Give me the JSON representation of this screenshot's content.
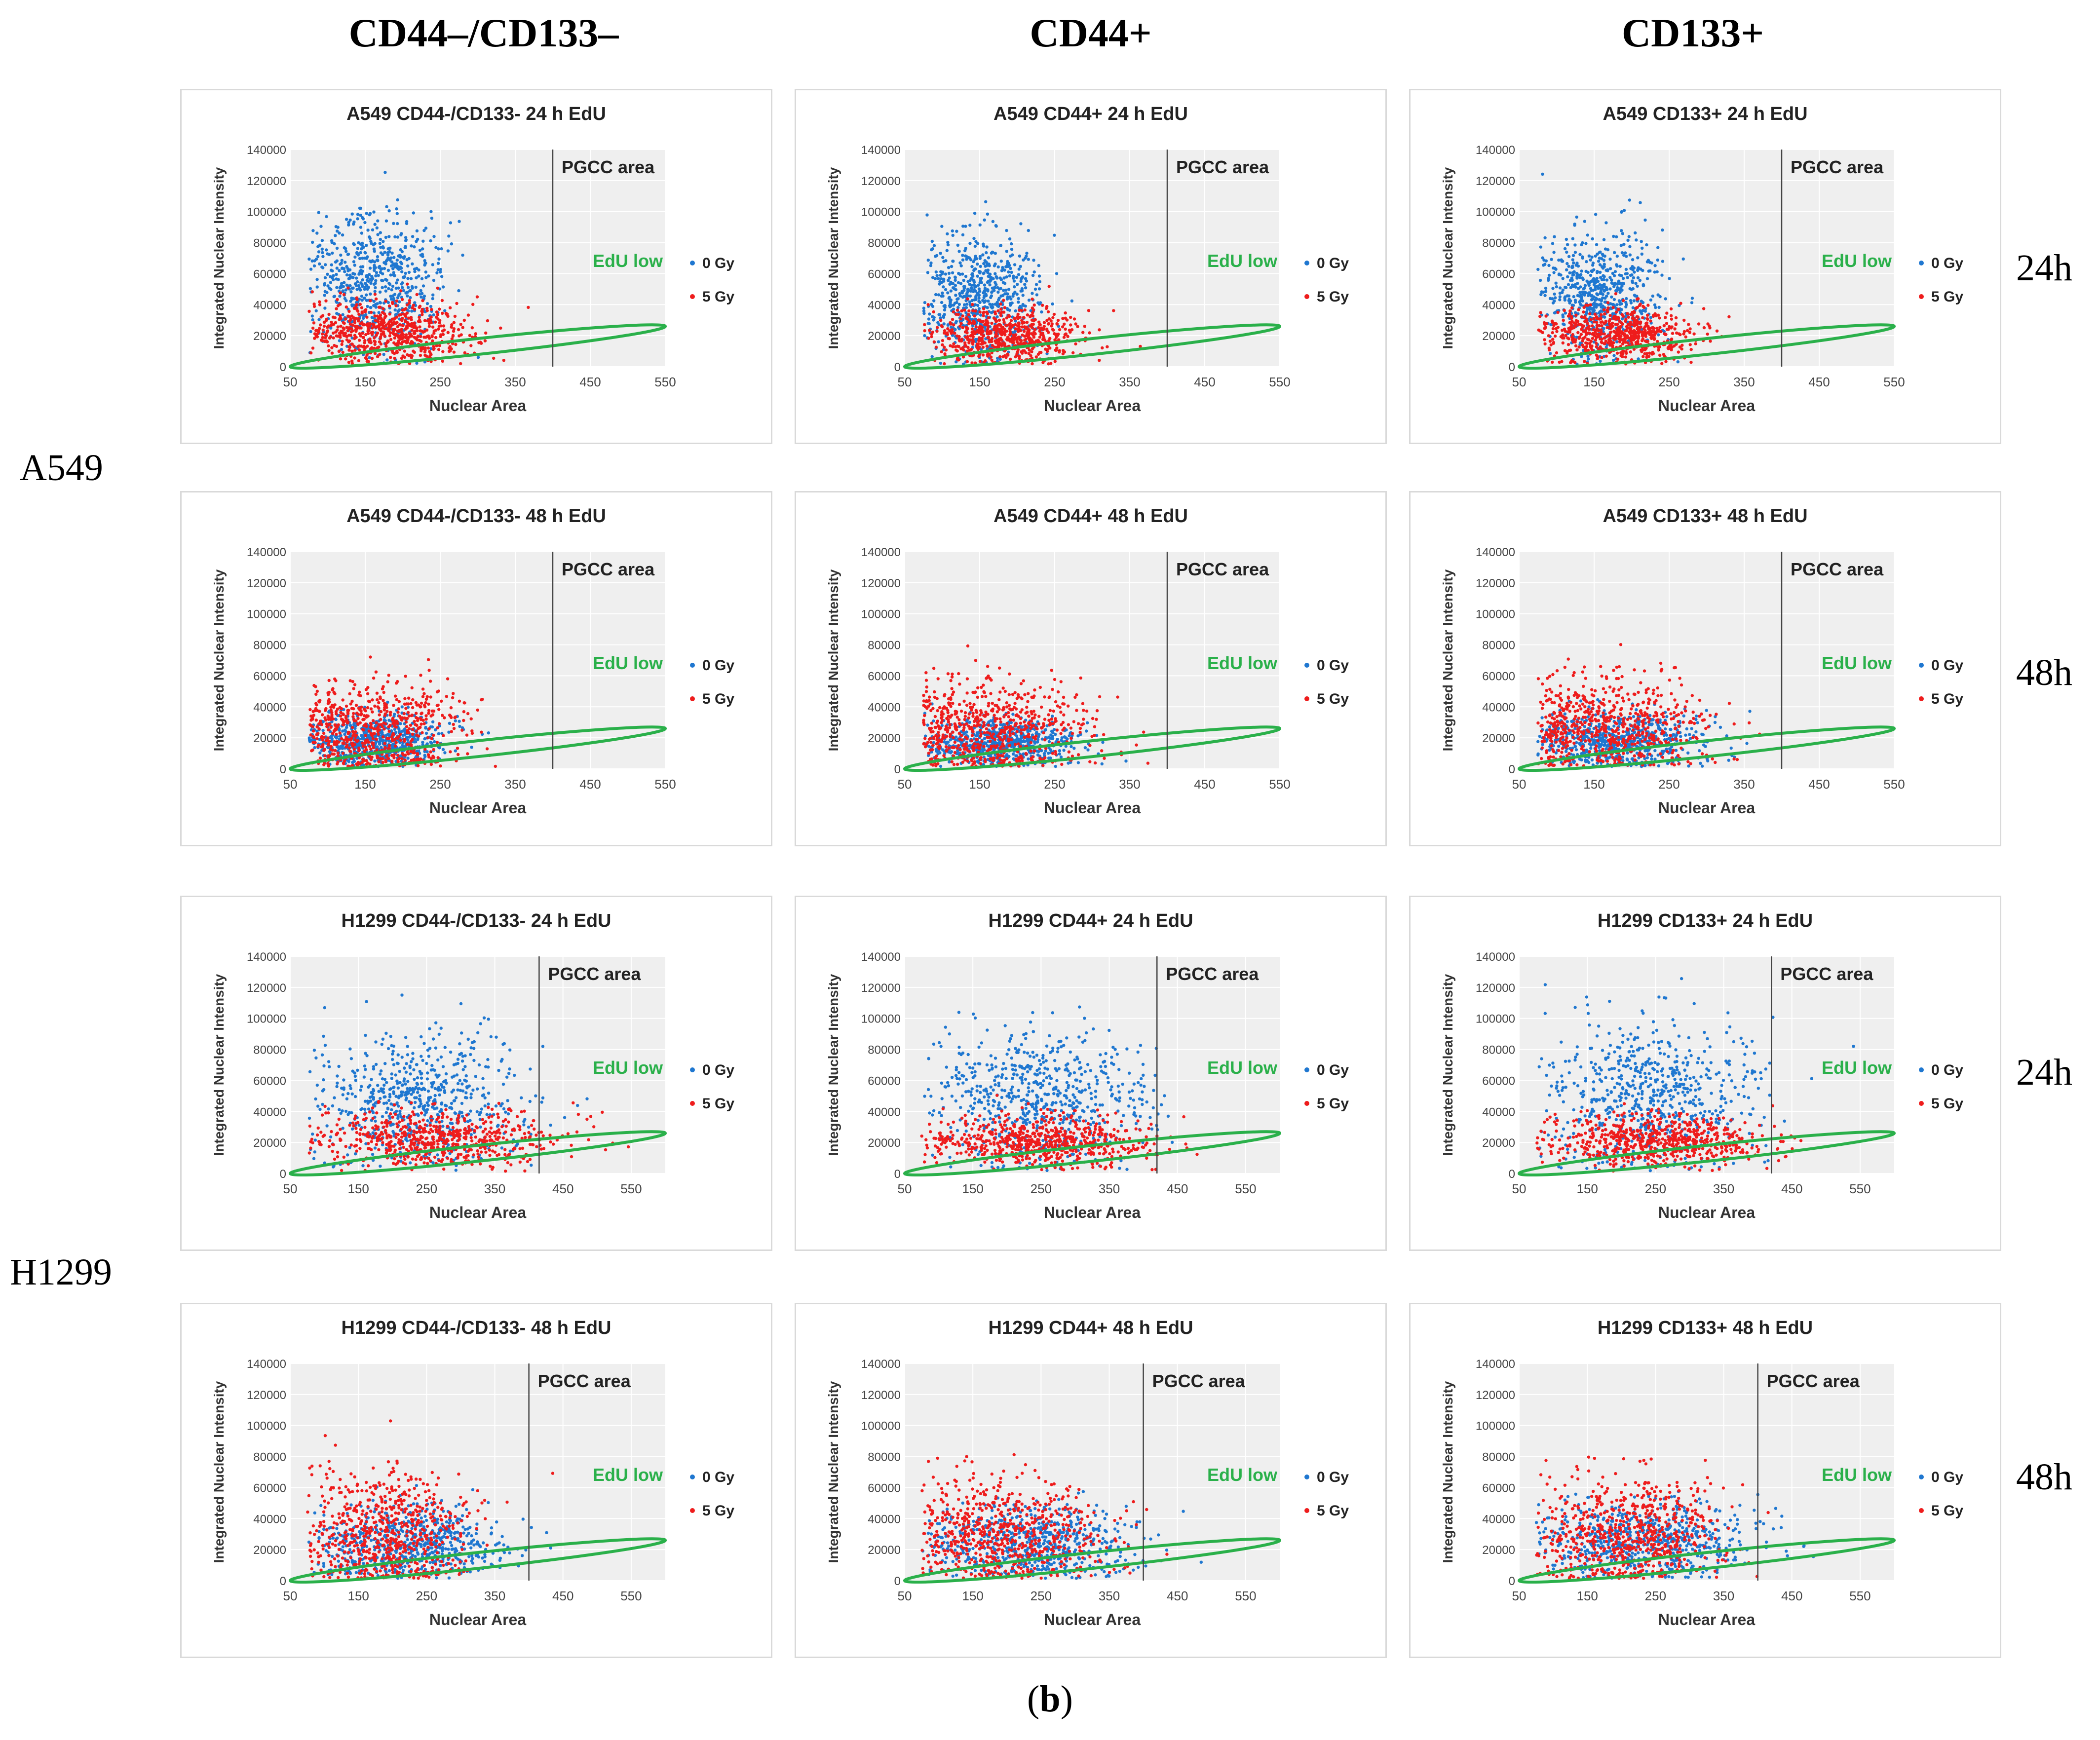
{
  "column_headers": [
    "CD44–/CD133–",
    "CD44+",
    "CD133+"
  ],
  "row_labels": [
    "A549",
    "H1299"
  ],
  "time_labels": [
    "24h",
    "48h",
    "24h",
    "48h"
  ],
  "caption": {
    "open": "(",
    "letter": "b",
    "close": ")"
  },
  "colors": {
    "gy0": "#1f77d0",
    "gy5": "#ee1c1c",
    "ellipse": "#2ab04a",
    "plot_bg": "#efefef",
    "grid": "#ffffff"
  },
  "chart_data": [
    {
      "type": "scatter",
      "title": "A549 CD44-/CD133- 24 h EdU",
      "xlabel": "Nuclear Area",
      "ylabel": "Integrated Nuclear Intensity",
      "xlim": [
        50,
        550
      ],
      "xticks": [
        50,
        150,
        250,
        350,
        450,
        550
      ],
      "ylim": [
        0,
        140000
      ],
      "yticks": [
        "0",
        "20000",
        "40000",
        "60000",
        "80000",
        "100000",
        "120000",
        "140000"
      ],
      "pgcc_x": 400,
      "annotation_pgcc": "PGCC area",
      "annotation_edu": "EdU low",
      "legend": [
        "0 Gy",
        "5 Gy"
      ],
      "series": [
        {
          "name": "0 Gy",
          "center": [
            165,
            55000
          ],
          "spread": [
            45,
            22000
          ]
        },
        {
          "name": "5 Gy",
          "center": [
            180,
            22000
          ],
          "spread": [
            55,
            10000
          ]
        }
      ]
    },
    {
      "type": "scatter",
      "title": "A549 CD44+ 24 h EdU",
      "xlabel": "Nuclear Area",
      "ylabel": "Integrated Nuclear Intensity",
      "xlim": [
        50,
        550
      ],
      "xticks": [
        50,
        150,
        250,
        350,
        450,
        550
      ],
      "ylim": [
        0,
        140000
      ],
      "yticks": [
        "0",
        "20000",
        "40000",
        "60000",
        "80000",
        "100000",
        "120000",
        "140000"
      ],
      "pgcc_x": 400,
      "annotation_pgcc": "PGCC area",
      "annotation_edu": "EdU low",
      "legend": [
        "0 Gy",
        "5 Gy"
      ],
      "series": [
        {
          "name": "0 Gy",
          "center": [
            150,
            45000
          ],
          "spread": [
            40,
            20000
          ]
        },
        {
          "name": "5 Gy",
          "center": [
            185,
            20000
          ],
          "spread": [
            50,
            9000
          ]
        }
      ]
    },
    {
      "type": "scatter",
      "title": "A549 CD133+ 24 h EdU",
      "xlabel": "Nuclear Area",
      "ylabel": "Integrated Nuclear Intensity",
      "xlim": [
        50,
        550
      ],
      "xticks": [
        50,
        150,
        250,
        350,
        450,
        550
      ],
      "ylim": [
        0,
        140000
      ],
      "yticks": [
        "0",
        "20000",
        "40000",
        "60000",
        "80000",
        "100000",
        "120000",
        "140000"
      ],
      "pgcc_x": 400,
      "annotation_pgcc": "PGCC area",
      "annotation_edu": "EdU low",
      "legend": [
        "0 Gy",
        "5 Gy"
      ],
      "series": [
        {
          "name": "0 Gy",
          "center": [
            155,
            47000
          ],
          "spread": [
            42,
            21000
          ]
        },
        {
          "name": "5 Gy",
          "center": [
            185,
            21000
          ],
          "spread": [
            52,
            9000
          ]
        }
      ]
    },
    {
      "type": "scatter",
      "title": "A549 CD44-/CD133- 48 h EdU",
      "xlabel": "Nuclear Area",
      "ylabel": "Integrated Nuclear Intensity",
      "xlim": [
        50,
        550
      ],
      "xticks": [
        50,
        150,
        250,
        350,
        450,
        550
      ],
      "ylim": [
        0,
        140000
      ],
      "yticks": [
        "0",
        "20000",
        "40000",
        "60000",
        "80000",
        "100000",
        "120000",
        "140000"
      ],
      "pgcc_x": 400,
      "annotation_pgcc": "PGCC area",
      "annotation_edu": "EdU low",
      "legend": [
        "0 Gy",
        "5 Gy"
      ],
      "series": [
        {
          "name": "0 Gy",
          "center": [
            165,
            18000
          ],
          "spread": [
            45,
            9000
          ]
        },
        {
          "name": "5 Gy",
          "center": [
            160,
            25000
          ],
          "spread": [
            60,
            15000
          ]
        }
      ]
    },
    {
      "type": "scatter",
      "title": "A549 CD44+ 48 h EdU",
      "xlabel": "Nuclear Area",
      "ylabel": "Integrated Nuclear Intensity",
      "xlim": [
        50,
        550
      ],
      "xticks": [
        50,
        150,
        250,
        350,
        450,
        550
      ],
      "ylim": [
        0,
        140000
      ],
      "yticks": [
        "0",
        "20000",
        "40000",
        "60000",
        "80000",
        "100000",
        "120000",
        "140000"
      ],
      "pgcc_x": 400,
      "annotation_pgcc": "PGCC area",
      "annotation_edu": "EdU low",
      "legend": [
        "0 Gy",
        "5 Gy"
      ],
      "series": [
        {
          "name": "0 Gy",
          "center": [
            175,
            17000
          ],
          "spread": [
            50,
            8000
          ]
        },
        {
          "name": "5 Gy",
          "center": [
            165,
            27000
          ],
          "spread": [
            65,
            16000
          ]
        }
      ]
    },
    {
      "type": "scatter",
      "title": "A549 CD133+ 48 h EdU",
      "xlabel": "Nuclear Area",
      "ylabel": "Integrated Nuclear Intensity",
      "xlim": [
        50,
        550
      ],
      "xticks": [
        50,
        150,
        250,
        350,
        450,
        550
      ],
      "ylim": [
        0,
        140000
      ],
      "yticks": [
        "0",
        "20000",
        "40000",
        "60000",
        "80000",
        "100000",
        "120000",
        "140000"
      ],
      "pgcc_x": 400,
      "annotation_pgcc": "PGCC area",
      "annotation_edu": "EdU low",
      "legend": [
        "0 Gy",
        "5 Gy"
      ],
      "series": [
        {
          "name": "0 Gy",
          "center": [
            180,
            18000
          ],
          "spread": [
            55,
            9000
          ]
        },
        {
          "name": "5 Gy",
          "center": [
            165,
            27000
          ],
          "spread": [
            65,
            17000
          ]
        }
      ]
    },
    {
      "type": "scatter",
      "title": "H1299 CD44-/CD133- 24 h EdU",
      "xlabel": "Nuclear Area",
      "ylabel": "Integrated Nuclear Intensity",
      "xlim": [
        50,
        600
      ],
      "xticks": [
        50,
        150,
        250,
        350,
        450,
        550
      ],
      "ylim": [
        0,
        140000
      ],
      "yticks": [
        "0",
        "20000",
        "40000",
        "60000",
        "80000",
        "100000",
        "120000",
        "140000"
      ],
      "pgcc_x": 415,
      "annotation_pgcc": "PGCC area",
      "annotation_edu": "EdU low",
      "legend": [
        "0 Gy",
        "5 Gy"
      ],
      "series": [
        {
          "name": "0 Gy",
          "center": [
            240,
            45000
          ],
          "spread": [
            75,
            22000
          ]
        },
        {
          "name": "5 Gy",
          "center": [
            260,
            22000
          ],
          "spread": [
            85,
            9000
          ]
        }
      ]
    },
    {
      "type": "scatter",
      "title": "H1299 CD44+ 24 h EdU",
      "xlabel": "Nuclear Area",
      "ylabel": "Integrated Nuclear Intensity",
      "xlim": [
        50,
        600
      ],
      "xticks": [
        50,
        150,
        250,
        350,
        450,
        550
      ],
      "ylim": [
        0,
        140000
      ],
      "yticks": [
        "0",
        "20000",
        "40000",
        "60000",
        "80000",
        "100000",
        "120000",
        "140000"
      ],
      "pgcc_x": 420,
      "annotation_pgcc": "PGCC area",
      "annotation_edu": "EdU low",
      "legend": [
        "0 Gy",
        "5 Gy"
      ],
      "series": [
        {
          "name": "0 Gy",
          "center": [
            245,
            47000
          ],
          "spread": [
            78,
            23000
          ]
        },
        {
          "name": "5 Gy",
          "center": [
            250,
            20000
          ],
          "spread": [
            80,
            8000
          ]
        }
      ]
    },
    {
      "type": "scatter",
      "title": "H1299 CD133+ 24 h EdU",
      "xlabel": "Nuclear Area",
      "ylabel": "Integrated Nuclear Intensity",
      "xlim": [
        50,
        600
      ],
      "xticks": [
        50,
        150,
        250,
        350,
        450,
        550
      ],
      "ylim": [
        0,
        140000
      ],
      "yticks": [
        "0",
        "20000",
        "40000",
        "60000",
        "80000",
        "100000",
        "120000",
        "140000"
      ],
      "pgcc_x": 420,
      "annotation_pgcc": "PGCC area",
      "annotation_edu": "EdU low",
      "legend": [
        "0 Gy",
        "5 Gy"
      ],
      "series": [
        {
          "name": "0 Gy",
          "center": [
            250,
            50000
          ],
          "spread": [
            75,
            25000
          ]
        },
        {
          "name": "5 Gy",
          "center": [
            250,
            21000
          ],
          "spread": [
            80,
            8000
          ]
        }
      ]
    },
    {
      "type": "scatter",
      "title": "H1299 CD44-/CD133- 48 h EdU",
      "xlabel": "Nuclear Area",
      "ylabel": "Integrated Nuclear Intensity",
      "xlim": [
        50,
        600
      ],
      "xticks": [
        50,
        150,
        250,
        350,
        450,
        550
      ],
      "ylim": [
        0,
        140000
      ],
      "yticks": [
        "0",
        "20000",
        "40000",
        "60000",
        "80000",
        "100000",
        "120000",
        "140000"
      ],
      "pgcc_x": 400,
      "annotation_pgcc": "PGCC area",
      "annotation_edu": "EdU low",
      "legend": [
        "0 Gy",
        "5 Gy"
      ],
      "series": [
        {
          "name": "0 Gy",
          "center": [
            230,
            24000
          ],
          "spread": [
            70,
            12000
          ]
        },
        {
          "name": "5 Gy",
          "center": [
            190,
            32000
          ],
          "spread": [
            65,
            20000
          ]
        }
      ]
    },
    {
      "type": "scatter",
      "title": "H1299 CD44+ 48 h EdU",
      "xlabel": "Nuclear Area",
      "ylabel": "Integrated Nuclear Intensity",
      "xlim": [
        50,
        600
      ],
      "xticks": [
        50,
        150,
        250,
        350,
        450,
        550
      ],
      "ylim": [
        0,
        140000
      ],
      "yticks": [
        "0",
        "20000",
        "40000",
        "60000",
        "80000",
        "100000",
        "120000",
        "140000"
      ],
      "pgcc_x": 400,
      "annotation_pgcc": "PGCC area",
      "annotation_edu": "EdU low",
      "legend": [
        "0 Gy",
        "5 Gy"
      ],
      "series": [
        {
          "name": "0 Gy",
          "center": [
            240,
            24000
          ],
          "spread": [
            75,
            12000
          ]
        },
        {
          "name": "5 Gy",
          "center": [
            200,
            30000
          ],
          "spread": [
            70,
            18000
          ]
        }
      ]
    },
    {
      "type": "scatter",
      "title": "H1299 CD133+ 48 h EdU",
      "xlabel": "Nuclear Area",
      "ylabel": "Integrated Nuclear Intensity",
      "xlim": [
        50,
        600
      ],
      "xticks": [
        50,
        150,
        250,
        350,
        450,
        550
      ],
      "ylim": [
        0,
        140000
      ],
      "yticks": [
        "0",
        "20000",
        "40000",
        "60000",
        "80000",
        "100000",
        "120000",
        "140000"
      ],
      "pgcc_x": 400,
      "annotation_pgcc": "PGCC area",
      "annotation_edu": "EdU low",
      "legend": [
        "0 Gy",
        "5 Gy"
      ],
      "series": [
        {
          "name": "0 Gy",
          "center": [
            240,
            26000
          ],
          "spread": [
            75,
            13000
          ]
        },
        {
          "name": "5 Gy",
          "center": [
            210,
            30000
          ],
          "spread": [
            70,
            18000
          ]
        }
      ]
    }
  ]
}
